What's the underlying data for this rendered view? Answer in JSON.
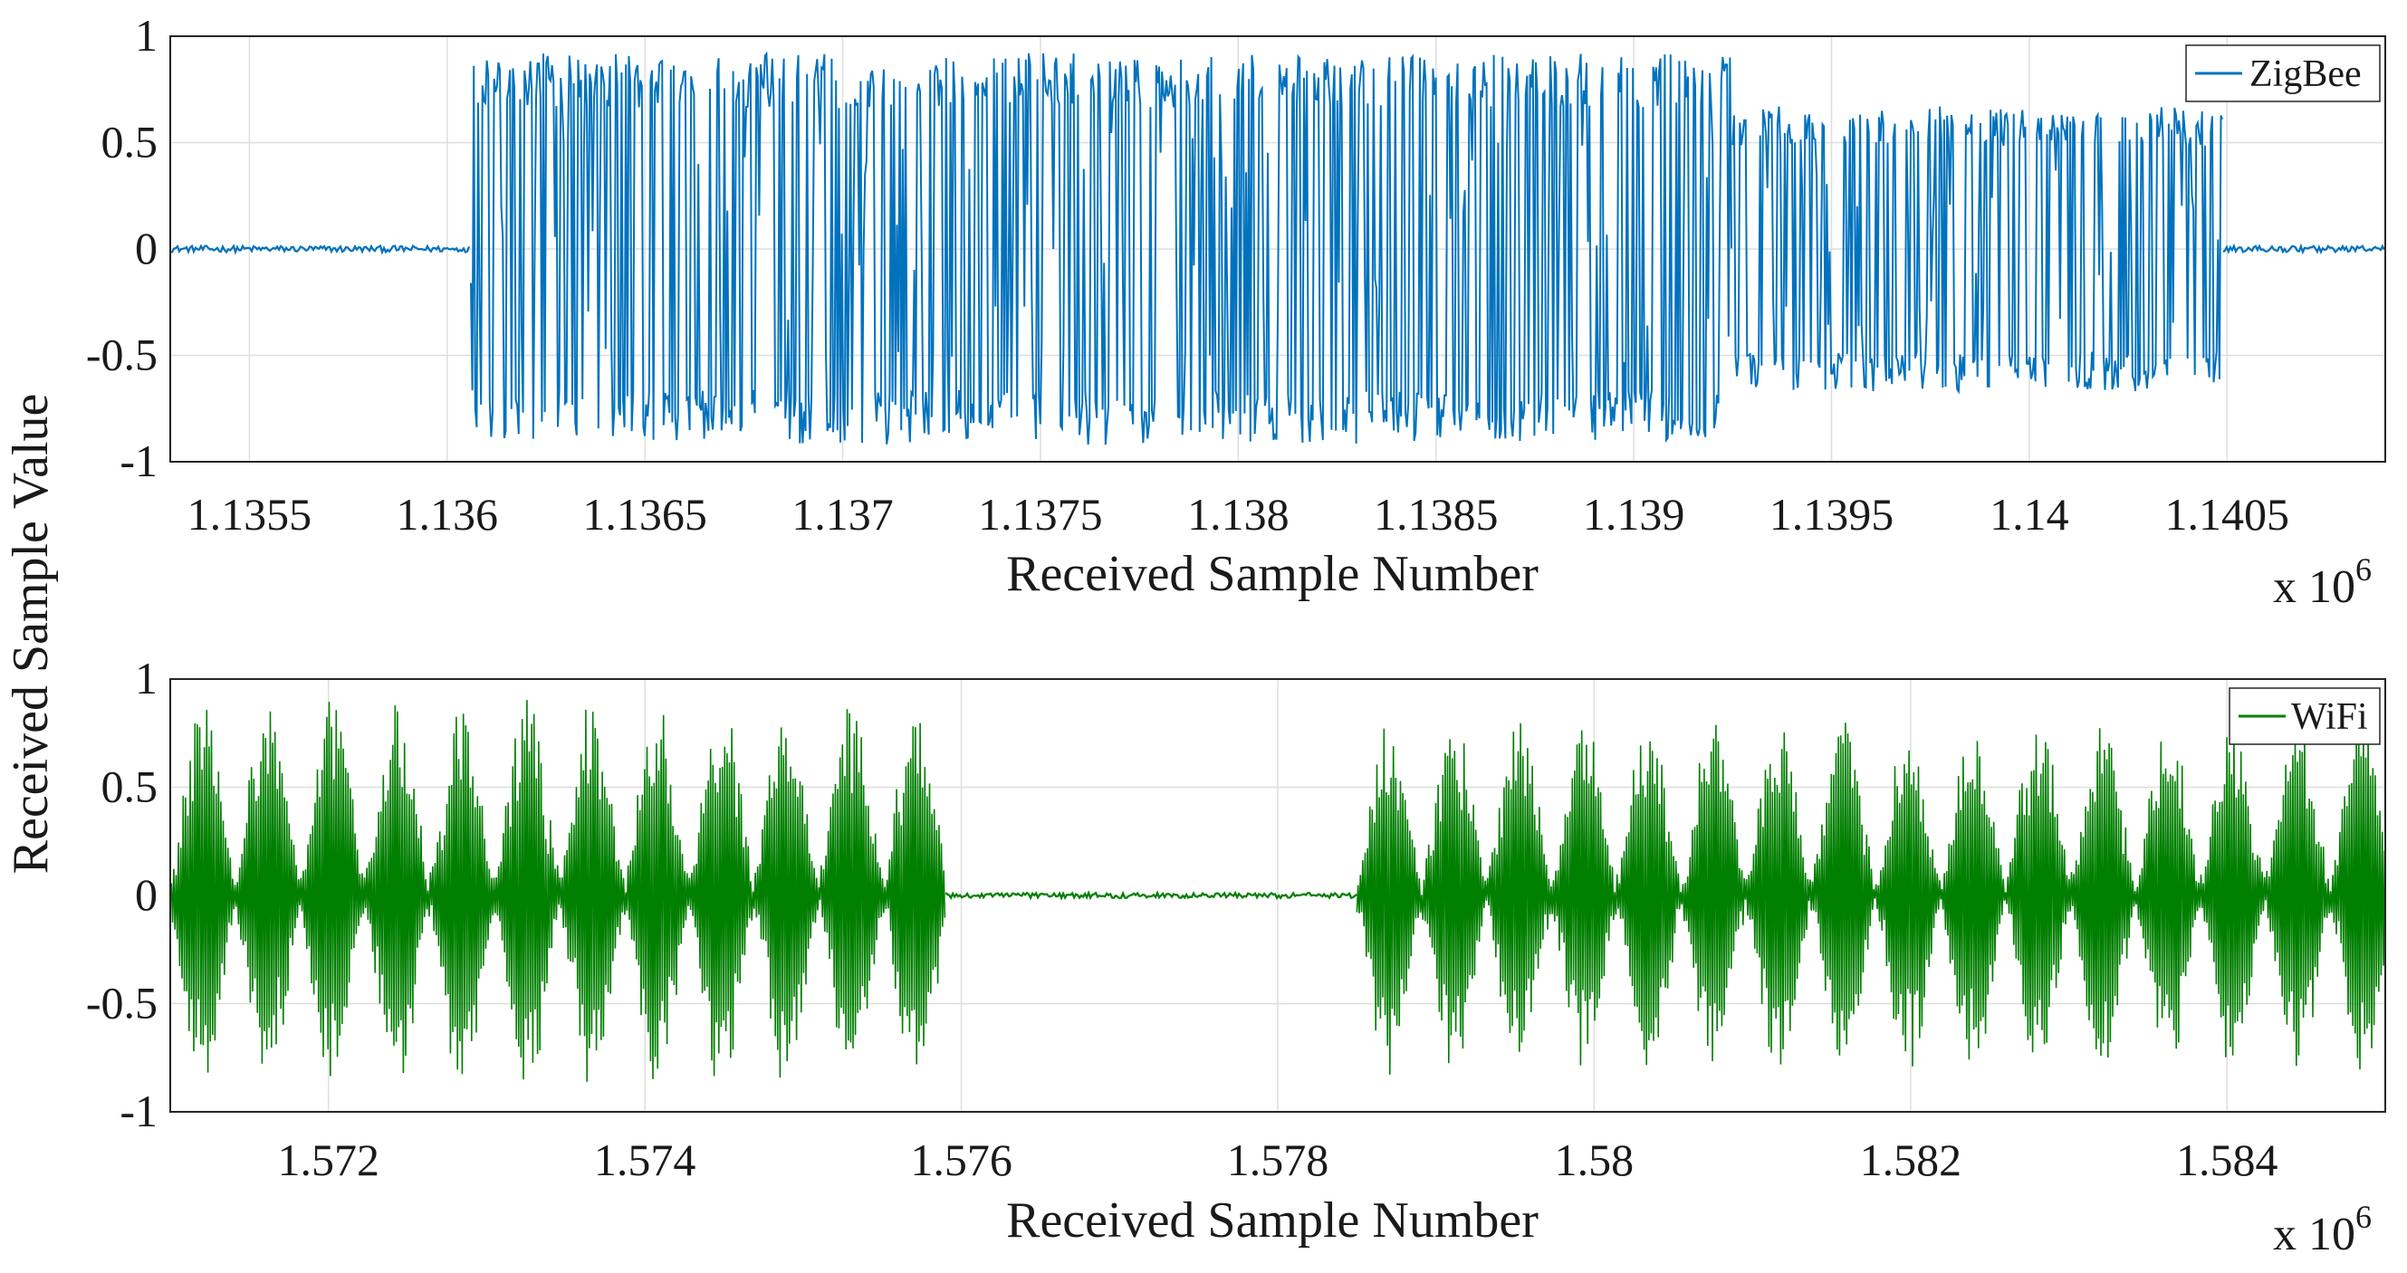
{
  "shared_ylabel": "Received Sample Value",
  "chart_data": [
    {
      "type": "line",
      "panel": "top",
      "legend": "ZigBee",
      "color": "#0072bd",
      "xlabel": "Received Sample Number",
      "ylabel": "Received Sample Value",
      "x_multiplier": "x 10",
      "x_multiplier_exp": "6",
      "xlim": [
        1.1353,
        1.1409
      ],
      "ylim": [
        -1,
        1
      ],
      "x_ticks": [
        1.1355,
        1.136,
        1.1365,
        1.137,
        1.1375,
        1.138,
        1.1385,
        1.139,
        1.1395,
        1.14,
        1.1405
      ],
      "x_tick_labels": [
        "1.1355",
        "1.136",
        "1.1365",
        "1.137",
        "1.1375",
        "1.138",
        "1.1385",
        "1.139",
        "1.1395",
        "1.14",
        "1.1405"
      ],
      "y_ticks": [
        1,
        0.5,
        0,
        -0.5,
        -1
      ],
      "y_tick_labels": [
        "1",
        "0.5",
        "0",
        "-0.5",
        "-1"
      ],
      "grid": true,
      "signal_segments": [
        {
          "x_start": 1.1353,
          "x_end": 1.13606,
          "kind": "noise",
          "amplitude": 0.015
        },
        {
          "x_start": 1.13606,
          "x_end": 1.13925,
          "kind": "burst",
          "amplitude": 0.92
        },
        {
          "x_start": 1.13925,
          "x_end": 1.14049,
          "kind": "burst",
          "amplitude": 0.67
        },
        {
          "x_start": 1.14049,
          "x_end": 1.1409,
          "kind": "noise",
          "amplitude": 0.015
        }
      ]
    },
    {
      "type": "line",
      "panel": "bottom",
      "legend": "WiFi",
      "color": "#007f00",
      "xlabel": "Received Sample Number",
      "ylabel": "Received Sample Value",
      "x_multiplier": "x 10",
      "x_multiplier_exp": "6",
      "xlim": [
        1.571,
        1.585
      ],
      "ylim": [
        -1,
        1
      ],
      "x_ticks": [
        1.572,
        1.574,
        1.576,
        1.578,
        1.58,
        1.582,
        1.584
      ],
      "x_tick_labels": [
        "1.572",
        "1.574",
        "1.576",
        "1.578",
        "1.58",
        "1.582",
        "1.584"
      ],
      "y_ticks": [
        1,
        0.5,
        0,
        -0.5,
        -1
      ],
      "y_tick_labels": [
        "1",
        "0.5",
        "0",
        "-0.5",
        "-1"
      ],
      "grid": true,
      "signal_segments": [
        {
          "x_start": 1.571,
          "x_end": 1.5759,
          "kind": "ofdm",
          "amplitude": 0.9,
          "envelope_period": 0.00041
        },
        {
          "x_start": 1.5759,
          "x_end": 1.5785,
          "kind": "noise",
          "amplitude": 0.012
        },
        {
          "x_start": 1.5785,
          "x_end": 1.585,
          "kind": "ofdm",
          "amplitude": 0.82,
          "envelope_period": 0.00041
        }
      ]
    }
  ]
}
